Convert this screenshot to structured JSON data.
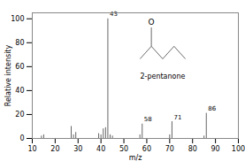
{
  "chart_data": {
    "type": "stem",
    "xlabel": "m/z",
    "ylabel": "Relative intensity",
    "xlim": [
      10,
      100
    ],
    "ylim": [
      0,
      105
    ],
    "xticks": [
      10,
      20,
      30,
      40,
      50,
      60,
      70,
      80,
      90,
      100
    ],
    "yticks": [
      0,
      20,
      40,
      60,
      80,
      100
    ],
    "color": "#666666",
    "x": [
      14,
      15,
      27,
      28,
      29,
      39,
      40,
      41,
      42,
      44,
      45,
      57,
      70,
      85,
      43,
      58,
      71,
      86
    ],
    "values": [
      2,
      3,
      10,
      3,
      5,
      4,
      3,
      8,
      9,
      3,
      2,
      3,
      3,
      2,
      100,
      12,
      14,
      21
    ],
    "peak_labels": [
      null,
      null,
      null,
      null,
      null,
      null,
      null,
      null,
      null,
      null,
      null,
      null,
      null,
      null,
      "43",
      "58",
      "71",
      "86"
    ],
    "annotations": [
      "O",
      "2-pentanone"
    ]
  }
}
